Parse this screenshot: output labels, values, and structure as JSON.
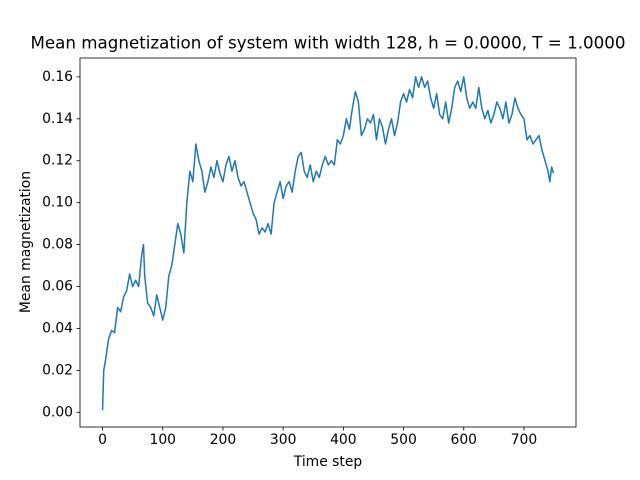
{
  "chart_data": {
    "type": "line",
    "title": "Mean magnetization of system with width 128, h = 0.0000, T = 1.0000",
    "xlabel": "Time step",
    "ylabel": "Mean magnetization",
    "xlim": [
      -37.45,
      786.45
    ],
    "ylim": [
      -0.007,
      0.169
    ],
    "xticks": [
      0,
      100,
      200,
      300,
      400,
      500,
      600,
      700
    ],
    "yticks": [
      {
        "value": 0,
        "label": "0.00"
      },
      {
        "value": 0.02,
        "label": "0.02"
      },
      {
        "value": 0.04,
        "label": "0.04"
      },
      {
        "value": 0.06,
        "label": "0.06"
      },
      {
        "value": 0.08,
        "label": "0.08"
      },
      {
        "value": 0.1,
        "label": "0.10"
      },
      {
        "value": 0.12,
        "label": "0.12"
      },
      {
        "value": 0.14,
        "label": "0.14"
      },
      {
        "value": 0.16,
        "label": "0.16"
      }
    ],
    "x": [
      0,
      2,
      5,
      10,
      15,
      20,
      25,
      30,
      35,
      40,
      45,
      50,
      55,
      60,
      65,
      68,
      70,
      75,
      80,
      85,
      90,
      95,
      100,
      105,
      110,
      115,
      120,
      125,
      130,
      135,
      140,
      145,
      150,
      155,
      160,
      165,
      170,
      175,
      180,
      185,
      190,
      195,
      200,
      205,
      210,
      215,
      220,
      225,
      230,
      235,
      240,
      245,
      250,
      255,
      260,
      265,
      270,
      275,
      280,
      285,
      290,
      295,
      300,
      305,
      310,
      315,
      320,
      325,
      330,
      335,
      340,
      345,
      350,
      355,
      360,
      365,
      370,
      375,
      380,
      385,
      390,
      395,
      400,
      405,
      410,
      415,
      420,
      425,
      430,
      435,
      440,
      445,
      450,
      455,
      460,
      465,
      470,
      475,
      480,
      485,
      490,
      495,
      500,
      505,
      510,
      515,
      520,
      525,
      530,
      535,
      540,
      545,
      550,
      555,
      560,
      565,
      570,
      575,
      580,
      585,
      590,
      595,
      600,
      605,
      610,
      615,
      620,
      625,
      630,
      635,
      640,
      645,
      650,
      655,
      660,
      665,
      670,
      675,
      680,
      685,
      690,
      695,
      700,
      705,
      710,
      715,
      720,
      725,
      730,
      735,
      740,
      743,
      746,
      749
    ],
    "series": [
      {
        "name": "magnetization",
        "color": "#1f77b4",
        "values": [
          0.001,
          0.02,
          0.025,
          0.035,
          0.039,
          0.038,
          0.05,
          0.048,
          0.055,
          0.058,
          0.066,
          0.06,
          0.063,
          0.06,
          0.075,
          0.08,
          0.065,
          0.052,
          0.05,
          0.046,
          0.056,
          0.05,
          0.044,
          0.05,
          0.065,
          0.07,
          0.08,
          0.09,
          0.085,
          0.076,
          0.1,
          0.115,
          0.11,
          0.128,
          0.12,
          0.115,
          0.105,
          0.11,
          0.117,
          0.112,
          0.12,
          0.114,
          0.11,
          0.118,
          0.122,
          0.115,
          0.12,
          0.112,
          0.108,
          0.11,
          0.105,
          0.1,
          0.095,
          0.092,
          0.085,
          0.088,
          0.086,
          0.09,
          0.085,
          0.1,
          0.105,
          0.11,
          0.102,
          0.108,
          0.11,
          0.105,
          0.115,
          0.122,
          0.124,
          0.115,
          0.112,
          0.118,
          0.11,
          0.115,
          0.112,
          0.118,
          0.122,
          0.118,
          0.12,
          0.118,
          0.13,
          0.128,
          0.132,
          0.14,
          0.135,
          0.145,
          0.153,
          0.148,
          0.132,
          0.135,
          0.14,
          0.138,
          0.142,
          0.13,
          0.14,
          0.136,
          0.128,
          0.135,
          0.14,
          0.132,
          0.138,
          0.148,
          0.152,
          0.148,
          0.154,
          0.15,
          0.16,
          0.155,
          0.16,
          0.155,
          0.158,
          0.15,
          0.145,
          0.152,
          0.142,
          0.14,
          0.148,
          0.138,
          0.145,
          0.155,
          0.158,
          0.153,
          0.16,
          0.15,
          0.145,
          0.148,
          0.145,
          0.155,
          0.145,
          0.14,
          0.144,
          0.138,
          0.142,
          0.148,
          0.145,
          0.14,
          0.148,
          0.138,
          0.142,
          0.15,
          0.145,
          0.142,
          0.14,
          0.13,
          0.132,
          0.128,
          0.13,
          0.132,
          0.125,
          0.12,
          0.115,
          0.11,
          0.117,
          0.114
        ]
      }
    ]
  }
}
